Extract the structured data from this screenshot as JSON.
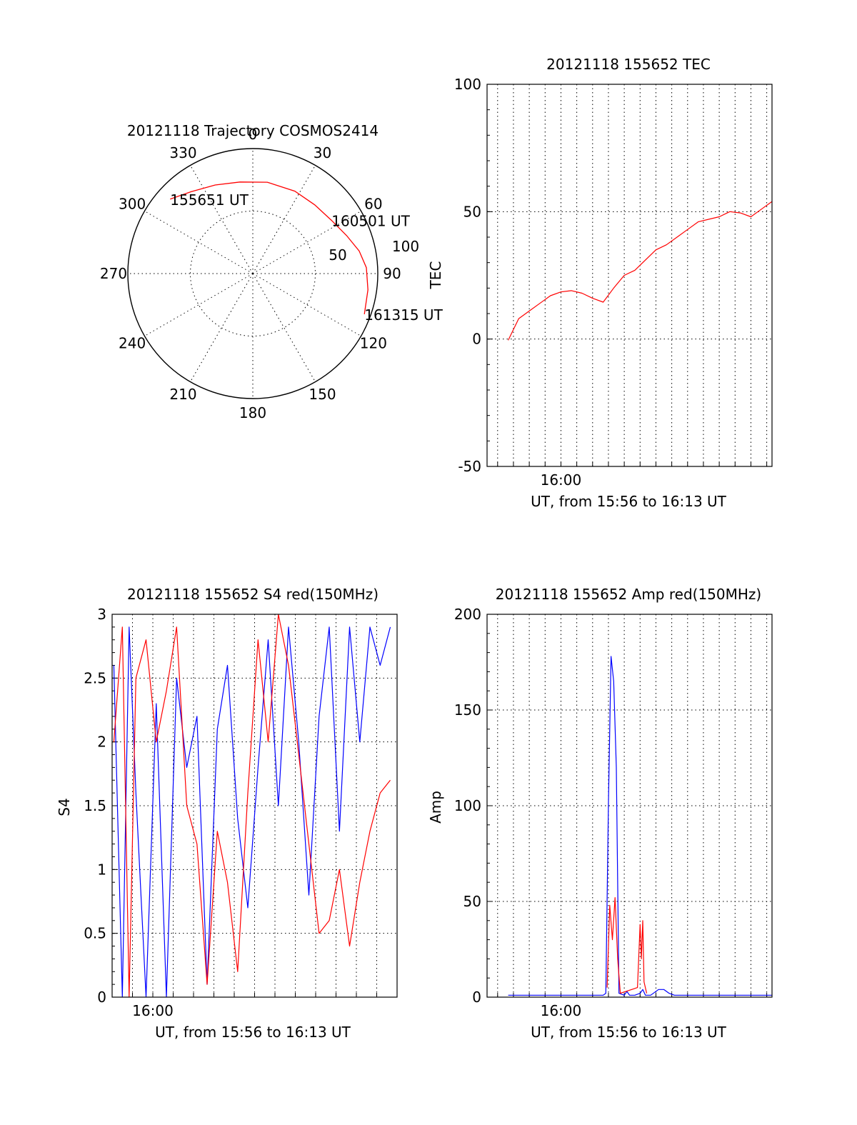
{
  "chart_data": [
    {
      "type": "polar",
      "title": "20121118 Trajectory COSMOS2414",
      "azimuth_labels": [
        "0",
        "30",
        "60",
        "90",
        "120",
        "150",
        "180",
        "210",
        "240",
        "270",
        "300",
        "330"
      ],
      "radial_rings": [
        {
          "zenith_angle": 50,
          "label": "50"
        },
        {
          "zenith_angle": 100,
          "label": "100"
        }
      ],
      "grid": true,
      "series": [
        {
          "color": "#ff0000",
          "points": [
            {
              "azimuth": 312,
              "zenith": 89
            },
            {
              "azimuth": 323,
              "zenith": 82
            },
            {
              "azimuth": 337,
              "zenith": 77
            },
            {
              "azimuth": 352,
              "zenith": 74
            },
            {
              "azimuth": 9,
              "zenith": 74
            },
            {
              "azimuth": 27,
              "zenith": 74
            },
            {
              "azimuth": 42,
              "zenith": 74
            },
            {
              "azimuth": 56,
              "zenith": 76
            },
            {
              "azimuth": 68,
              "zenith": 81
            },
            {
              "azimuth": 78,
              "zenith": 87
            },
            {
              "azimuth": 87,
              "zenith": 91
            },
            {
              "azimuth": 98,
              "zenith": 93
            },
            {
              "azimuth": 110,
              "zenith": 95
            }
          ]
        }
      ],
      "annotations": [
        {
          "text": "155651 UT",
          "azimuth": 312,
          "zenith": 89
        },
        {
          "text": "160501 UT",
          "azimuth": 56,
          "zenith": 76
        },
        {
          "text": "161315 UT",
          "azimuth": 110,
          "zenith": 95
        }
      ]
    },
    {
      "type": "line",
      "title": "20121118 155652 TEC",
      "ylabel": "TEC",
      "xlabel": "UT, from 15:56 to 16:13 UT",
      "ylim": [
        -50,
        100
      ],
      "yticks": [
        "-50",
        "0",
        "50",
        "100"
      ],
      "xlim": [
        "15:55:20",
        "16:13:20"
      ],
      "xtick_labels": [
        {
          "time": "16:00",
          "label": "16:00"
        }
      ],
      "grid": true,
      "series": [
        {
          "color": "#ff0000",
          "x": [
            "15:56:40",
            "15:57:20",
            "15:58:00",
            "15:58:40",
            "15:59:20",
            "16:00:00",
            "16:00:40",
            "16:01:20",
            "16:02:00",
            "16:02:40",
            "16:03:20",
            "16:04:00",
            "16:04:40",
            "16:05:20",
            "16:06:00",
            "16:06:40",
            "16:07:20",
            "16:08:00",
            "16:08:40",
            "16:09:20",
            "16:10:00",
            "16:10:40",
            "16:11:20",
            "16:12:00",
            "16:12:40",
            "16:13:20"
          ],
          "y": [
            -0.5,
            8,
            11,
            14,
            17,
            18.5,
            19,
            18,
            16,
            14.5,
            20,
            25,
            27,
            31,
            35,
            37,
            40,
            43,
            46,
            47,
            48,
            50,
            49.5,
            48,
            51,
            54
          ]
        }
      ]
    },
    {
      "type": "line",
      "title": "20121118 155652 S4 red(150MHz)",
      "ylabel": "S4",
      "xlabel": "UT, from 15:56 to 16:13 UT",
      "ylim": [
        0,
        3
      ],
      "yticks": [
        "0",
        "0.5",
        "1",
        "1.5",
        "2",
        "2.5",
        "3"
      ],
      "xlim": [
        "15:58:00",
        "16:12:00"
      ],
      "xtick_labels": [
        {
          "time": "16:00",
          "label": "16:00"
        }
      ],
      "grid": true,
      "series": [
        {
          "color": "#0000ff",
          "x": [
            "15:58:05",
            "15:58:30",
            "15:58:50",
            "15:59:10",
            "15:59:40",
            "16:00:10",
            "16:00:40",
            "16:01:10",
            "16:01:40",
            "16:02:10",
            "16:02:40",
            "16:03:10",
            "16:03:40",
            "16:04:10",
            "16:04:40",
            "16:05:10",
            "16:05:40",
            "16:06:10",
            "16:06:40",
            "16:07:10",
            "16:07:40",
            "16:08:10",
            "16:08:40",
            "16:09:10",
            "16:09:40",
            "16:10:10",
            "16:10:40",
            "16:11:10",
            "16:11:40"
          ],
          "y": [
            2.6,
            0.0,
            2.9,
            1.6,
            0.0,
            2.3,
            0.0,
            2.5,
            1.8,
            2.2,
            0.1,
            2.1,
            2.6,
            1.4,
            0.7,
            1.8,
            2.8,
            1.5,
            2.9,
            2.0,
            0.8,
            2.2,
            2.9,
            1.3,
            2.9,
            2.0,
            2.9,
            2.6,
            2.9
          ]
        },
        {
          "color": "#ff0000",
          "x": [
            "15:58:05",
            "15:58:30",
            "15:58:50",
            "15:59:10",
            "15:59:40",
            "16:00:10",
            "16:00:40",
            "16:01:10",
            "16:01:40",
            "16:02:10",
            "16:02:40",
            "16:03:10",
            "16:03:40",
            "16:04:10",
            "16:04:40",
            "16:05:10",
            "16:05:40",
            "16:06:10",
            "16:06:40",
            "16:07:10",
            "16:07:40",
            "16:08:10",
            "16:08:40",
            "16:09:10",
            "16:09:40",
            "16:10:10",
            "16:10:40",
            "16:11:10",
            "16:11:40"
          ],
          "y": [
            2.0,
            2.9,
            0.0,
            2.5,
            2.8,
            2.0,
            2.4,
            2.9,
            1.5,
            1.2,
            0.1,
            1.3,
            0.9,
            0.2,
            1.6,
            2.8,
            2.0,
            3.0,
            2.6,
            1.9,
            1.2,
            0.5,
            0.6,
            1.0,
            0.4,
            0.9,
            1.3,
            1.6,
            1.7
          ]
        }
      ]
    },
    {
      "type": "line",
      "title": "20121118 155652 Amp red(150MHz)",
      "ylabel": "Amp",
      "xlabel": "UT, from 15:56 to 16:13 UT",
      "ylim": [
        0,
        200
      ],
      "yticks": [
        "0",
        "50",
        "100",
        "150",
        "200"
      ],
      "xlim": [
        "15:55:20",
        "16:13:20"
      ],
      "xtick_labels": [
        {
          "time": "16:00",
          "label": "16:00"
        }
      ],
      "grid": true,
      "series": [
        {
          "color": "#0000ff",
          "x": [
            "15:56:40",
            "16:02:40",
            "16:02:50",
            "16:03:00",
            "16:03:10",
            "16:03:20",
            "16:03:30",
            "16:03:40",
            "16:04:00",
            "16:04:10",
            "16:04:20",
            "16:04:40",
            "16:05:00",
            "16:05:10",
            "16:05:20",
            "16:05:40",
            "16:06:10",
            "16:06:30",
            "16:06:50",
            "16:07:10",
            "16:13:20"
          ],
          "y": [
            1,
            1,
            2,
            100,
            178,
            165,
            120,
            2,
            1,
            3,
            1,
            1,
            2,
            4,
            1,
            1,
            4,
            4,
            2,
            1,
            1
          ]
        },
        {
          "color": "#ff0000",
          "x": [
            "16:02:55",
            "16:03:05",
            "16:03:15",
            "16:03:25",
            "16:03:35",
            "16:03:45",
            "16:04:50",
            "16:05:00",
            "16:05:05",
            "16:05:10",
            "16:05:15",
            "16:05:25"
          ],
          "y": [
            5,
            48,
            30,
            52,
            20,
            2,
            5,
            38,
            20,
            40,
            8,
            2
          ]
        }
      ]
    }
  ]
}
